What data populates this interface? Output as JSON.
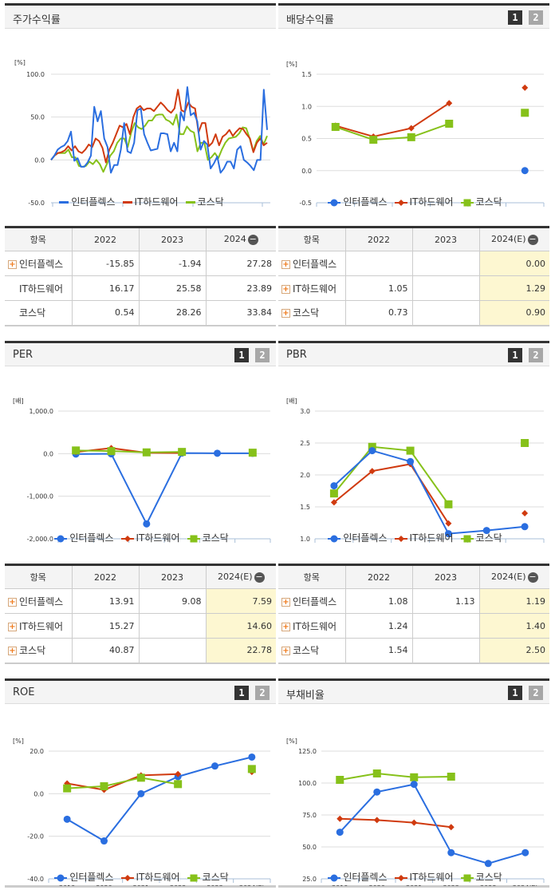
{
  "colors": {
    "company": "#2a6ee0",
    "industry": "#d03a0f",
    "kosdaq": "#86c11a",
    "estimate_bg": "#fdf7d1"
  },
  "legend": {
    "company": "인터플렉스",
    "industry": "IT하드웨어",
    "kosdaq": "코스닥"
  },
  "page_buttons": {
    "one": "1",
    "two": "2"
  },
  "panels": {
    "stock_return": {
      "title": "주가수익률",
      "unit": "[%]"
    },
    "dividend": {
      "title": "배당수익률",
      "unit": "[%]"
    },
    "per": {
      "title": "PER",
      "unit": "[배]"
    },
    "pbr": {
      "title": "PBR",
      "unit": "[배]"
    },
    "roe": {
      "title": "ROE",
      "unit": "[%]"
    },
    "debt": {
      "title": "부채비율",
      "unit": "[%]"
    }
  },
  "tables": {
    "stock_return": {
      "headers": [
        "항목",
        "2022",
        "2023",
        "2024"
      ],
      "rows": [
        {
          "name": "인터플렉스",
          "values": [
            "-15.85",
            "-1.94",
            "27.28"
          ],
          "expand": true
        },
        {
          "name": "IT하드웨어",
          "values": [
            "16.17",
            "25.58",
            "23.89"
          ],
          "expand": false
        },
        {
          "name": "코스닥",
          "values": [
            "0.54",
            "28.26",
            "33.84"
          ],
          "expand": false
        }
      ]
    },
    "dividend": {
      "headers": [
        "항목",
        "2022",
        "2023",
        "2024(E)"
      ],
      "rows": [
        {
          "name": "인터플렉스",
          "values": [
            "",
            "",
            "0.00"
          ],
          "expand": true
        },
        {
          "name": "IT하드웨어",
          "values": [
            "1.05",
            "",
            "1.29"
          ],
          "expand": true
        },
        {
          "name": "코스닥",
          "values": [
            "0.73",
            "",
            "0.90"
          ],
          "expand": true
        }
      ]
    },
    "per": {
      "headers": [
        "항목",
        "2022",
        "2023",
        "2024(E)"
      ],
      "rows": [
        {
          "name": "인터플렉스",
          "values": [
            "13.91",
            "9.08",
            "7.59"
          ],
          "expand": true
        },
        {
          "name": "IT하드웨어",
          "values": [
            "15.27",
            "",
            "14.60"
          ],
          "expand": true
        },
        {
          "name": "코스닥",
          "values": [
            "40.87",
            "",
            "22.78"
          ],
          "expand": true
        }
      ]
    },
    "pbr": {
      "headers": [
        "항목",
        "2022",
        "2023",
        "2024(E)"
      ],
      "rows": [
        {
          "name": "인터플렉스",
          "values": [
            "1.08",
            "1.13",
            "1.19"
          ],
          "expand": true
        },
        {
          "name": "IT하드웨어",
          "values": [
            "1.24",
            "",
            "1.40"
          ],
          "expand": true
        },
        {
          "name": "코스닥",
          "values": [
            "1.54",
            "",
            "2.50"
          ],
          "expand": true
        }
      ]
    }
  },
  "chart_data": [
    {
      "id": "stock_return",
      "type": "line",
      "title": "주가수익률",
      "ylabel": "[%]",
      "ylim": [
        -50,
        100
      ],
      "yticks": [
        "100.0",
        "50.0",
        "0.0",
        "-50.0"
      ],
      "xticks": [
        "2018/12/28",
        "2020/08/31",
        "2022/04/29",
        "2023/12/28"
      ],
      "series": [
        {
          "name": "인터플렉스",
          "values": [
            0,
            5,
            12,
            15,
            17,
            22,
            33,
            -1,
            2,
            -8,
            -8,
            -3,
            5,
            62,
            45,
            57,
            25,
            15,
            -15,
            -6,
            -6,
            12,
            43,
            10,
            8,
            20,
            58,
            60,
            30,
            20,
            11,
            12,
            13,
            31,
            31,
            30,
            10,
            20,
            10,
            56,
            46,
            85,
            52,
            55,
            45,
            12,
            22,
            18,
            -10,
            -4,
            4,
            -15,
            -10,
            -2,
            -2,
            -10,
            12,
            16,
            0,
            -3,
            -7,
            -12,
            0,
            0,
            82,
            35
          ]
        },
        {
          "name": "IT하드웨어",
          "values": [
            0,
            5,
            8,
            9,
            11,
            16,
            11,
            16,
            10,
            8,
            12,
            18,
            15,
            25,
            22,
            14,
            -3,
            12,
            20,
            30,
            40,
            38,
            42,
            30,
            50,
            60,
            63,
            58,
            60,
            60,
            57,
            62,
            67,
            63,
            58,
            55,
            60,
            82,
            58,
            56,
            67,
            62,
            60,
            32,
            43,
            43,
            16,
            20,
            30,
            17,
            27,
            30,
            35,
            28,
            33,
            37,
            36,
            30,
            25,
            9,
            20,
            25,
            17,
            20
          ]
        },
        {
          "name": "코스닥",
          "values": [
            0,
            5,
            8,
            8,
            8,
            12,
            3,
            3,
            -7,
            -8,
            -7,
            -2,
            -5,
            0,
            -5,
            -14,
            -5,
            5,
            10,
            20,
            25,
            25,
            15,
            32,
            43,
            38,
            36,
            40,
            46,
            46,
            52,
            53,
            53,
            47,
            45,
            41,
            53,
            30,
            30,
            39,
            34,
            32,
            10,
            20,
            20,
            0,
            3,
            8,
            2,
            12,
            20,
            25,
            26,
            27,
            31,
            38,
            37,
            25,
            10,
            22,
            28,
            18,
            28
          ]
        }
      ]
    },
    {
      "id": "dividend",
      "type": "line",
      "title": "배당수익률",
      "ylabel": "[%]",
      "ylim": [
        -0.5,
        1.5
      ],
      "yticks": [
        "1.5",
        "1.0",
        "0.5",
        "0.0",
        "-0.5"
      ],
      "categories": [
        "2019",
        "2020",
        "2021",
        "2022",
        "2023",
        "2024(E)"
      ],
      "series": [
        {
          "name": "인터플렉스",
          "values": [
            null,
            null,
            null,
            null,
            null,
            0.0
          ]
        },
        {
          "name": "IT하드웨어",
          "values": [
            0.7,
            0.53,
            0.66,
            1.05,
            null,
            1.29
          ]
        },
        {
          "name": "코스닥",
          "values": [
            0.68,
            0.48,
            0.52,
            0.73,
            null,
            0.9
          ]
        }
      ]
    },
    {
      "id": "per",
      "type": "line",
      "title": "PER",
      "ylabel": "[배]",
      "ylim": [
        -2000,
        1000
      ],
      "yticks": [
        "1,000.0",
        "0.0",
        "-1,000.0",
        "-2,000.0"
      ],
      "categories": [
        "2019",
        "2020",
        "2021",
        "2022",
        "2023",
        "2024(E)"
      ],
      "series": [
        {
          "name": "인터플렉스",
          "values": [
            -10,
            -5,
            -1650,
            13.91,
            9.08,
            7.59
          ]
        },
        {
          "name": "IT하드웨어",
          "values": [
            40,
            130,
            20,
            15.27,
            null,
            14.6
          ]
        },
        {
          "name": "코스닥",
          "values": [
            75,
            60,
            30,
            40.87,
            null,
            22.78
          ]
        }
      ]
    },
    {
      "id": "pbr",
      "type": "line",
      "title": "PBR",
      "ylabel": "[배]",
      "ylim": [
        1.0,
        3.0
      ],
      "yticks": [
        "3.0",
        "2.5",
        "2.0",
        "1.5",
        "1.0"
      ],
      "categories": [
        "2019",
        "2020",
        "2021",
        "2022",
        "2023",
        "2024(E)"
      ],
      "series": [
        {
          "name": "인터플렉스",
          "values": [
            1.83,
            2.38,
            2.21,
            1.08,
            1.13,
            1.19
          ]
        },
        {
          "name": "IT하드웨어",
          "values": [
            1.57,
            2.06,
            2.17,
            1.24,
            null,
            1.4
          ]
        },
        {
          "name": "코스닥",
          "values": [
            1.71,
            2.44,
            2.38,
            1.54,
            null,
            2.5
          ]
        }
      ]
    },
    {
      "id": "roe",
      "type": "line",
      "title": "ROE",
      "ylabel": "[%]",
      "ylim": [
        -40,
        20
      ],
      "yticks": [
        "20.0",
        "0.0",
        "-20.0",
        "-40.0"
      ],
      "categories": [
        "2019",
        "2020",
        "2021",
        "2022",
        "2023",
        "2024(E)"
      ],
      "series": [
        {
          "name": "인터플렉스",
          "values": [
            -12,
            -22.2,
            0,
            8,
            13,
            17.2
          ]
        },
        {
          "name": "IT하드웨어",
          "values": [
            4.8,
            1.8,
            8.6,
            9.2,
            null,
            10.2
          ]
        },
        {
          "name": "코스닥",
          "values": [
            2.5,
            3.5,
            7.5,
            4.5,
            null,
            11.6
          ]
        }
      ]
    },
    {
      "id": "debt",
      "type": "line",
      "title": "부채비율",
      "ylabel": "[%]",
      "ylim": [
        25,
        125
      ],
      "yticks": [
        "125.0",
        "100.0",
        "75.0",
        "50.0",
        "25.0"
      ],
      "categories": [
        "2019",
        "2020",
        "2021",
        "2022",
        "2023",
        "2024(E)"
      ],
      "series": [
        {
          "name": "인터플렉스",
          "values": [
            61.5,
            93,
            99,
            45.5,
            37,
            45.5
          ]
        },
        {
          "name": "IT하드웨어",
          "values": [
            72,
            71,
            69,
            65.5,
            null,
            null
          ]
        },
        {
          "name": "코스닥",
          "values": [
            102.5,
            107.5,
            104.5,
            105,
            null,
            null
          ]
        }
      ]
    }
  ]
}
